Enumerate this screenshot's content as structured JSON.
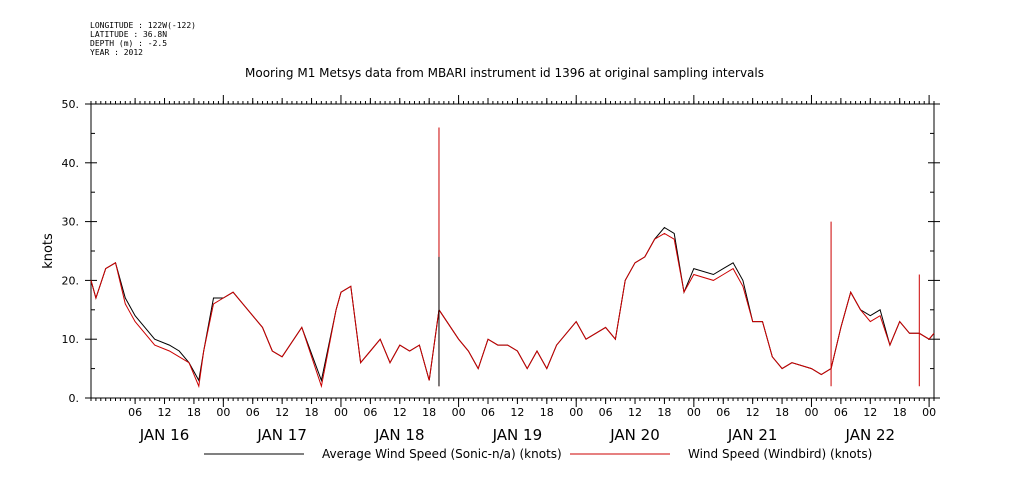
{
  "header": {
    "longitude": "LONGITUDE : 122W(-122)",
    "latitude": "LATITUDE : 36.8N",
    "depth": "DEPTH (m) : -2.5",
    "year": "YEAR : 2012"
  },
  "chart_data": {
    "type": "line",
    "title": "Mooring M1 Metsys data from MBARI instrument id 1396 at original sampling intervals",
    "ylabel": "knots",
    "ylim": [
      0,
      50
    ],
    "y_ticks": [
      0,
      10,
      20,
      30,
      40,
      50
    ],
    "y_tick_labels": [
      "0.",
      "10.",
      "20.",
      "30.",
      "40.",
      "50."
    ],
    "xlim": [
      "2012-01-15T21:00",
      "2012-01-23T01:00"
    ],
    "x_hour_labels": [
      "06",
      "12",
      "18",
      "00",
      "06",
      "12",
      "18",
      "00",
      "06",
      "12",
      "18",
      "00",
      "06",
      "12",
      "18",
      "00",
      "06",
      "12",
      "18",
      "00",
      "06",
      "12",
      "18",
      "00",
      "06",
      "12",
      "18",
      "00"
    ],
    "day_labels": [
      "JAN 16",
      "JAN 17",
      "JAN 18",
      "JAN 19",
      "JAN 20",
      "JAN 21",
      "JAN 22"
    ],
    "legend_placement": "bottom",
    "series": [
      {
        "name": "Average Wind Speed (Sonic-n/a) (knots)",
        "color": "#000000",
        "x": [
          "2012-01-15T21:00",
          "2012-01-15T22:00",
          "2012-01-16T00:00",
          "2012-01-16T02:00",
          "2012-01-16T04:00",
          "2012-01-16T06:00",
          "2012-01-16T08:00",
          "2012-01-16T10:00",
          "2012-01-16T13:00",
          "2012-01-16T15:00",
          "2012-01-16T17:00",
          "2012-01-16T19:00",
          "2012-01-16T20:00",
          "2012-01-16T22:00",
          "2012-01-17T00:00",
          "2012-01-17T02:00",
          "2012-01-17T04:00",
          "2012-01-17T06:00",
          "2012-01-17T08:00",
          "2012-01-17T10:00",
          "2012-01-17T12:00",
          "2012-01-17T16:00",
          "2012-01-17T20:00",
          "2012-01-17T23:00",
          "2012-01-18T00:00",
          "2012-01-18T02:00",
          "2012-01-18T04:00",
          "2012-01-18T06:00",
          "2012-01-18T08:00",
          "2012-01-18T10:00",
          "2012-01-18T12:00",
          "2012-01-18T14:00",
          "2012-01-18T16:00",
          "2012-01-18T18:00",
          "2012-01-18T20:00",
          "2012-01-19T00:00",
          "2012-01-19T02:00",
          "2012-01-19T04:00",
          "2012-01-19T06:00",
          "2012-01-19T08:00",
          "2012-01-19T10:00",
          "2012-01-19T12:00",
          "2012-01-19T14:00",
          "2012-01-19T16:00",
          "2012-01-19T18:00",
          "2012-01-19T20:00",
          "2012-01-20T00:00",
          "2012-01-20T02:00",
          "2012-01-20T04:00",
          "2012-01-20T06:00",
          "2012-01-20T08:00",
          "2012-01-20T10:00",
          "2012-01-20T12:00",
          "2012-01-20T14:00",
          "2012-01-20T16:00",
          "2012-01-20T18:00",
          "2012-01-20T20:00",
          "2012-01-20T22:00",
          "2012-01-21T00:00",
          "2012-01-21T04:00",
          "2012-01-21T06:00",
          "2012-01-21T08:00",
          "2012-01-21T10:00",
          "2012-01-21T12:00",
          "2012-01-21T14:00",
          "2012-01-21T16:00",
          "2012-01-21T18:00",
          "2012-01-21T20:00",
          "2012-01-22T00:00",
          "2012-01-22T02:00",
          "2012-01-22T04:00",
          "2012-01-22T06:00",
          "2012-01-22T08:00",
          "2012-01-22T10:00",
          "2012-01-22T12:00",
          "2012-01-22T14:00",
          "2012-01-22T16:00",
          "2012-01-22T18:00",
          "2012-01-22T20:00",
          "2012-01-22T22:00",
          "2012-01-23T00:00",
          "2012-01-23T01:00"
        ],
        "y": [
          20,
          17,
          22,
          23,
          17,
          14,
          12,
          10,
          9,
          8,
          6,
          3,
          8,
          17,
          17,
          18,
          16,
          14,
          12,
          8,
          7,
          12,
          3,
          15,
          18,
          19,
          6,
          8,
          10,
          6,
          9,
          8,
          9,
          3,
          15,
          10,
          8,
          5,
          10,
          9,
          9,
          8,
          5,
          8,
          5,
          9,
          13,
          10,
          11,
          12,
          10,
          20,
          23,
          24,
          27,
          29,
          28,
          18,
          22,
          21,
          22,
          23,
          20,
          13,
          13,
          7,
          5,
          6,
          5,
          4,
          5,
          12,
          18,
          15,
          14,
          15,
          9,
          13,
          11,
          11,
          10,
          11
        ]
      },
      {
        "name": "Wind Speed (Windbird) (knots)",
        "color": "#cc0000",
        "x": [
          "2012-01-15T21:00",
          "2012-01-15T22:00",
          "2012-01-16T00:00",
          "2012-01-16T02:00",
          "2012-01-16T04:00",
          "2012-01-16T06:00",
          "2012-01-16T08:00",
          "2012-01-16T10:00",
          "2012-01-16T13:00",
          "2012-01-16T15:00",
          "2012-01-16T17:00",
          "2012-01-16T19:00",
          "2012-01-16T20:00",
          "2012-01-16T22:00",
          "2012-01-17T00:00",
          "2012-01-17T02:00",
          "2012-01-17T04:00",
          "2012-01-17T06:00",
          "2012-01-17T08:00",
          "2012-01-17T10:00",
          "2012-01-17T12:00",
          "2012-01-17T16:00",
          "2012-01-17T20:00",
          "2012-01-17T23:00",
          "2012-01-18T00:00",
          "2012-01-18T02:00",
          "2012-01-18T04:00",
          "2012-01-18T06:00",
          "2012-01-18T08:00",
          "2012-01-18T10:00",
          "2012-01-18T12:00",
          "2012-01-18T14:00",
          "2012-01-18T16:00",
          "2012-01-18T18:00",
          "2012-01-18T20:00",
          "2012-01-19T00:00",
          "2012-01-19T02:00",
          "2012-01-19T04:00",
          "2012-01-19T06:00",
          "2012-01-19T08:00",
          "2012-01-19T10:00",
          "2012-01-19T12:00",
          "2012-01-19T14:00",
          "2012-01-19T16:00",
          "2012-01-19T18:00",
          "2012-01-19T20:00",
          "2012-01-20T00:00",
          "2012-01-20T02:00",
          "2012-01-20T04:00",
          "2012-01-20T06:00",
          "2012-01-20T08:00",
          "2012-01-20T10:00",
          "2012-01-20T12:00",
          "2012-01-20T14:00",
          "2012-01-20T16:00",
          "2012-01-20T18:00",
          "2012-01-20T20:00",
          "2012-01-20T22:00",
          "2012-01-21T00:00",
          "2012-01-21T04:00",
          "2012-01-21T06:00",
          "2012-01-21T08:00",
          "2012-01-21T10:00",
          "2012-01-21T12:00",
          "2012-01-21T14:00",
          "2012-01-21T16:00",
          "2012-01-21T18:00",
          "2012-01-21T20:00",
          "2012-01-22T00:00",
          "2012-01-22T02:00",
          "2012-01-22T04:00",
          "2012-01-22T06:00",
          "2012-01-22T08:00",
          "2012-01-22T10:00",
          "2012-01-22T12:00",
          "2012-01-22T14:00",
          "2012-01-22T16:00",
          "2012-01-22T18:00",
          "2012-01-22T20:00",
          "2012-01-22T22:00",
          "2012-01-23T00:00",
          "2012-01-23T01:00"
        ],
        "y": [
          20,
          17,
          22,
          23,
          16,
          13,
          11,
          9,
          8,
          7,
          6,
          2,
          8,
          16,
          17,
          18,
          16,
          14,
          12,
          8,
          7,
          12,
          2,
          15,
          18,
          19,
          6,
          8,
          10,
          6,
          9,
          8,
          9,
          3,
          15,
          10,
          8,
          5,
          10,
          9,
          9,
          8,
          5,
          8,
          5,
          9,
          13,
          10,
          11,
          12,
          10,
          20,
          23,
          24,
          27,
          28,
          27,
          18,
          21,
          20,
          21,
          22,
          19,
          13,
          13,
          7,
          5,
          6,
          5,
          4,
          5,
          12,
          18,
          15,
          13,
          14,
          9,
          13,
          11,
          11,
          10,
          11
        ]
      }
    ],
    "spikes": [
      {
        "series": "Wind Speed (Windbird) (knots)",
        "x": "2012-01-18T20:00",
        "y": 46
      },
      {
        "series": "Average Wind Speed (Sonic-n/a) (knots)",
        "x": "2012-01-18T20:00",
        "y": 24
      },
      {
        "series": "Wind Speed (Windbird) (knots)",
        "x": "2012-01-22T04:00",
        "y": 30
      },
      {
        "series": "Wind Speed (Windbird) (knots)",
        "x": "2012-01-22T22:00",
        "y": 21
      }
    ]
  }
}
